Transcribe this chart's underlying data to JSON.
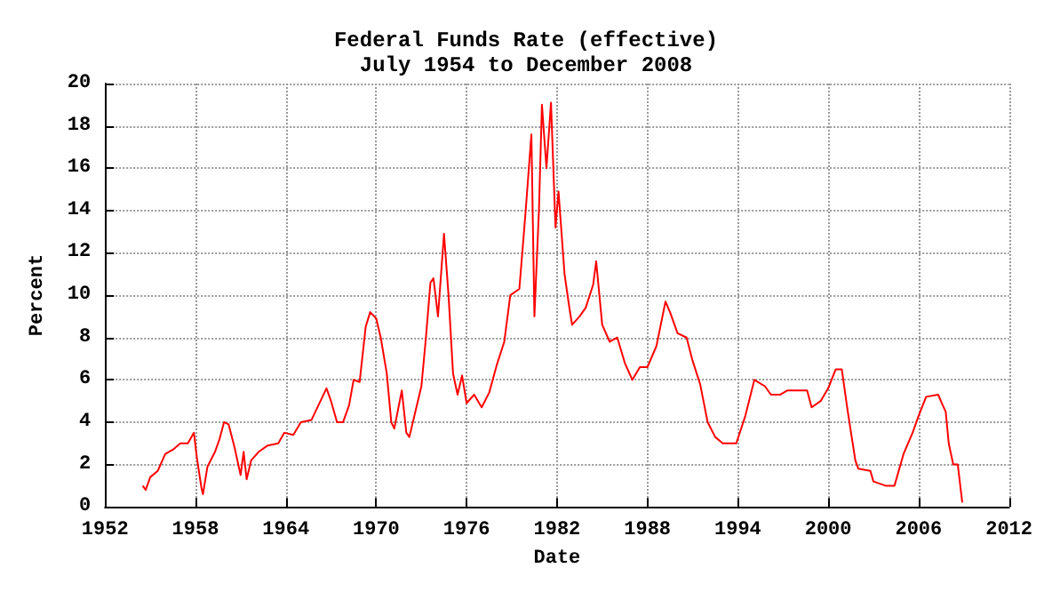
{
  "chart_data": {
    "type": "line",
    "title": "Federal Funds Rate (effective)",
    "subtitle": "July 1954 to December 2008",
    "xlabel": "Date",
    "ylabel": "Percent",
    "x": [
      1954.5,
      1954.7,
      1955.0,
      1955.5,
      1956.0,
      1956.5,
      1957.0,
      1957.5,
      1957.9,
      1958.1,
      1958.4,
      1958.5,
      1958.8,
      1959.3,
      1959.6,
      1959.9,
      1960.2,
      1960.6,
      1961.0,
      1961.2,
      1961.4,
      1961.7,
      1962.2,
      1962.8,
      1963.5,
      1963.9,
      1964.5,
      1965.0,
      1965.7,
      1966.3,
      1966.7,
      1967.0,
      1967.4,
      1967.8,
      1968.2,
      1968.5,
      1968.9,
      1969.3,
      1969.6,
      1970.0,
      1970.3,
      1970.7,
      1971.0,
      1971.2,
      1971.7,
      1972.0,
      1972.2,
      1972.6,
      1973.0,
      1973.3,
      1973.6,
      1973.8,
      1974.1,
      1974.5,
      1974.8,
      1975.1,
      1975.4,
      1975.7,
      1976.0,
      1976.5,
      1977.0,
      1977.5,
      1978.0,
      1978.5,
      1978.9,
      1979.5,
      1979.9,
      1980.3,
      1980.5,
      1980.8,
      1981.0,
      1981.3,
      1981.6,
      1981.9,
      1982.1,
      1982.5,
      1982.8,
      1983.0,
      1983.5,
      1983.9,
      1984.4,
      1984.6,
      1985.0,
      1985.5,
      1986.0,
      1986.5,
      1987.0,
      1987.5,
      1988.0,
      1988.6,
      1989.2,
      1989.5,
      1990.0,
      1990.6,
      1991.0,
      1991.5,
      1992.0,
      1992.5,
      1993.0,
      1993.9,
      1994.5,
      1995.1,
      1995.8,
      1996.2,
      1996.8,
      1997.3,
      1998.6,
      1998.9,
      1999.5,
      2000.0,
      2000.5,
      2000.9,
      2001.3,
      2001.8,
      2002.0,
      2002.8,
      2003.0,
      2003.8,
      2004.4,
      2005.0,
      2005.6,
      2006.0,
      2006.5,
      2007.3,
      2007.6,
      2007.8,
      2008.0,
      2008.3,
      2008.6,
      2008.9
    ],
    "series": [
      {
        "color": "#ff0000",
        "values": [
          1.0,
          0.8,
          1.4,
          1.7,
          2.5,
          2.7,
          3.0,
          3.0,
          3.5,
          2.3,
          0.9,
          0.6,
          1.9,
          2.6,
          3.2,
          4.0,
          3.9,
          2.8,
          1.5,
          2.6,
          1.3,
          2.2,
          2.6,
          2.9,
          3.0,
          3.5,
          3.4,
          4.0,
          4.1,
          5.0,
          5.6,
          5.0,
          4.0,
          4.0,
          4.8,
          6.0,
          5.9,
          8.5,
          9.2,
          8.9,
          8.0,
          6.3,
          4.0,
          3.7,
          5.5,
          3.5,
          3.3,
          4.5,
          5.7,
          8.0,
          10.6,
          10.8,
          9.0,
          12.9,
          10.0,
          6.3,
          5.3,
          6.2,
          4.9,
          5.3,
          4.7,
          5.4,
          6.7,
          7.8,
          10.0,
          10.3,
          13.8,
          17.6,
          9.0,
          14.0,
          19.0,
          16.0,
          19.1,
          13.2,
          14.9,
          11.0,
          9.5,
          8.6,
          9.0,
          9.4,
          10.5,
          11.6,
          8.6,
          7.8,
          8.0,
          6.8,
          6.0,
          6.6,
          6.6,
          7.6,
          9.7,
          9.2,
          8.2,
          8.0,
          6.9,
          5.8,
          4.0,
          3.3,
          3.0,
          3.0,
          4.3,
          6.0,
          5.7,
          5.3,
          5.3,
          5.5,
          5.5,
          4.7,
          5.0,
          5.6,
          6.5,
          6.5,
          4.5,
          2.2,
          1.8,
          1.7,
          1.2,
          1.0,
          1.0,
          2.5,
          3.5,
          4.3,
          5.2,
          5.3,
          4.8,
          4.5,
          3.0,
          2.0,
          2.0,
          0.2
        ]
      }
    ],
    "xlim": [
      1952,
      2012
    ],
    "xticks": [
      1952,
      1958,
      1964,
      1970,
      1976,
      1982,
      1988,
      1994,
      2000,
      2006,
      2012
    ],
    "ylim": [
      0,
      20
    ],
    "yticks": [
      0,
      2,
      4,
      6,
      8,
      10,
      12,
      14,
      16,
      18,
      20
    ],
    "grid": true,
    "marker": "none",
    "line_style": "solid"
  }
}
